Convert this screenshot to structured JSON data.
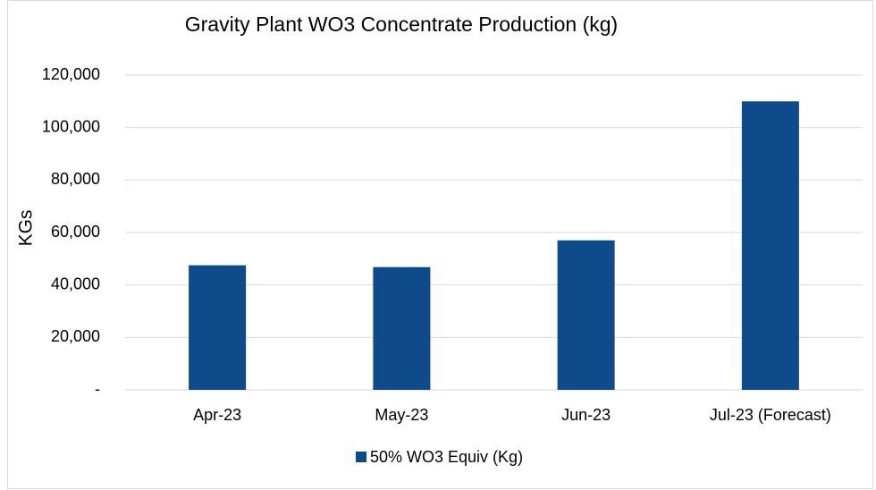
{
  "chart_data": {
    "type": "bar",
    "title": "Gravity Plant WO3 Concentrate Production (kg)",
    "y_label": "KGs",
    "categories": [
      "Apr-23",
      "May-23",
      "Jun-23",
      "Jul-23 (Forecast)"
    ],
    "series": [
      {
        "name": "50% WO3 Equiv (Kg)",
        "color": "#0f4a8a",
        "values": [
          47500,
          46800,
          57000,
          110000
        ]
      }
    ],
    "ylim": [
      0,
      120000
    ],
    "yticks": [
      {
        "value": 0,
        "label": "-"
      },
      {
        "value": 20000,
        "label": "20,000"
      },
      {
        "value": 40000,
        "label": "40,000"
      },
      {
        "value": 60000,
        "label": "60,000"
      },
      {
        "value": 80000,
        "label": "80,000"
      },
      {
        "value": 100000,
        "label": "100,000"
      },
      {
        "value": 120000,
        "label": "120,000"
      }
    ],
    "grid": true,
    "legend": "bottom"
  }
}
